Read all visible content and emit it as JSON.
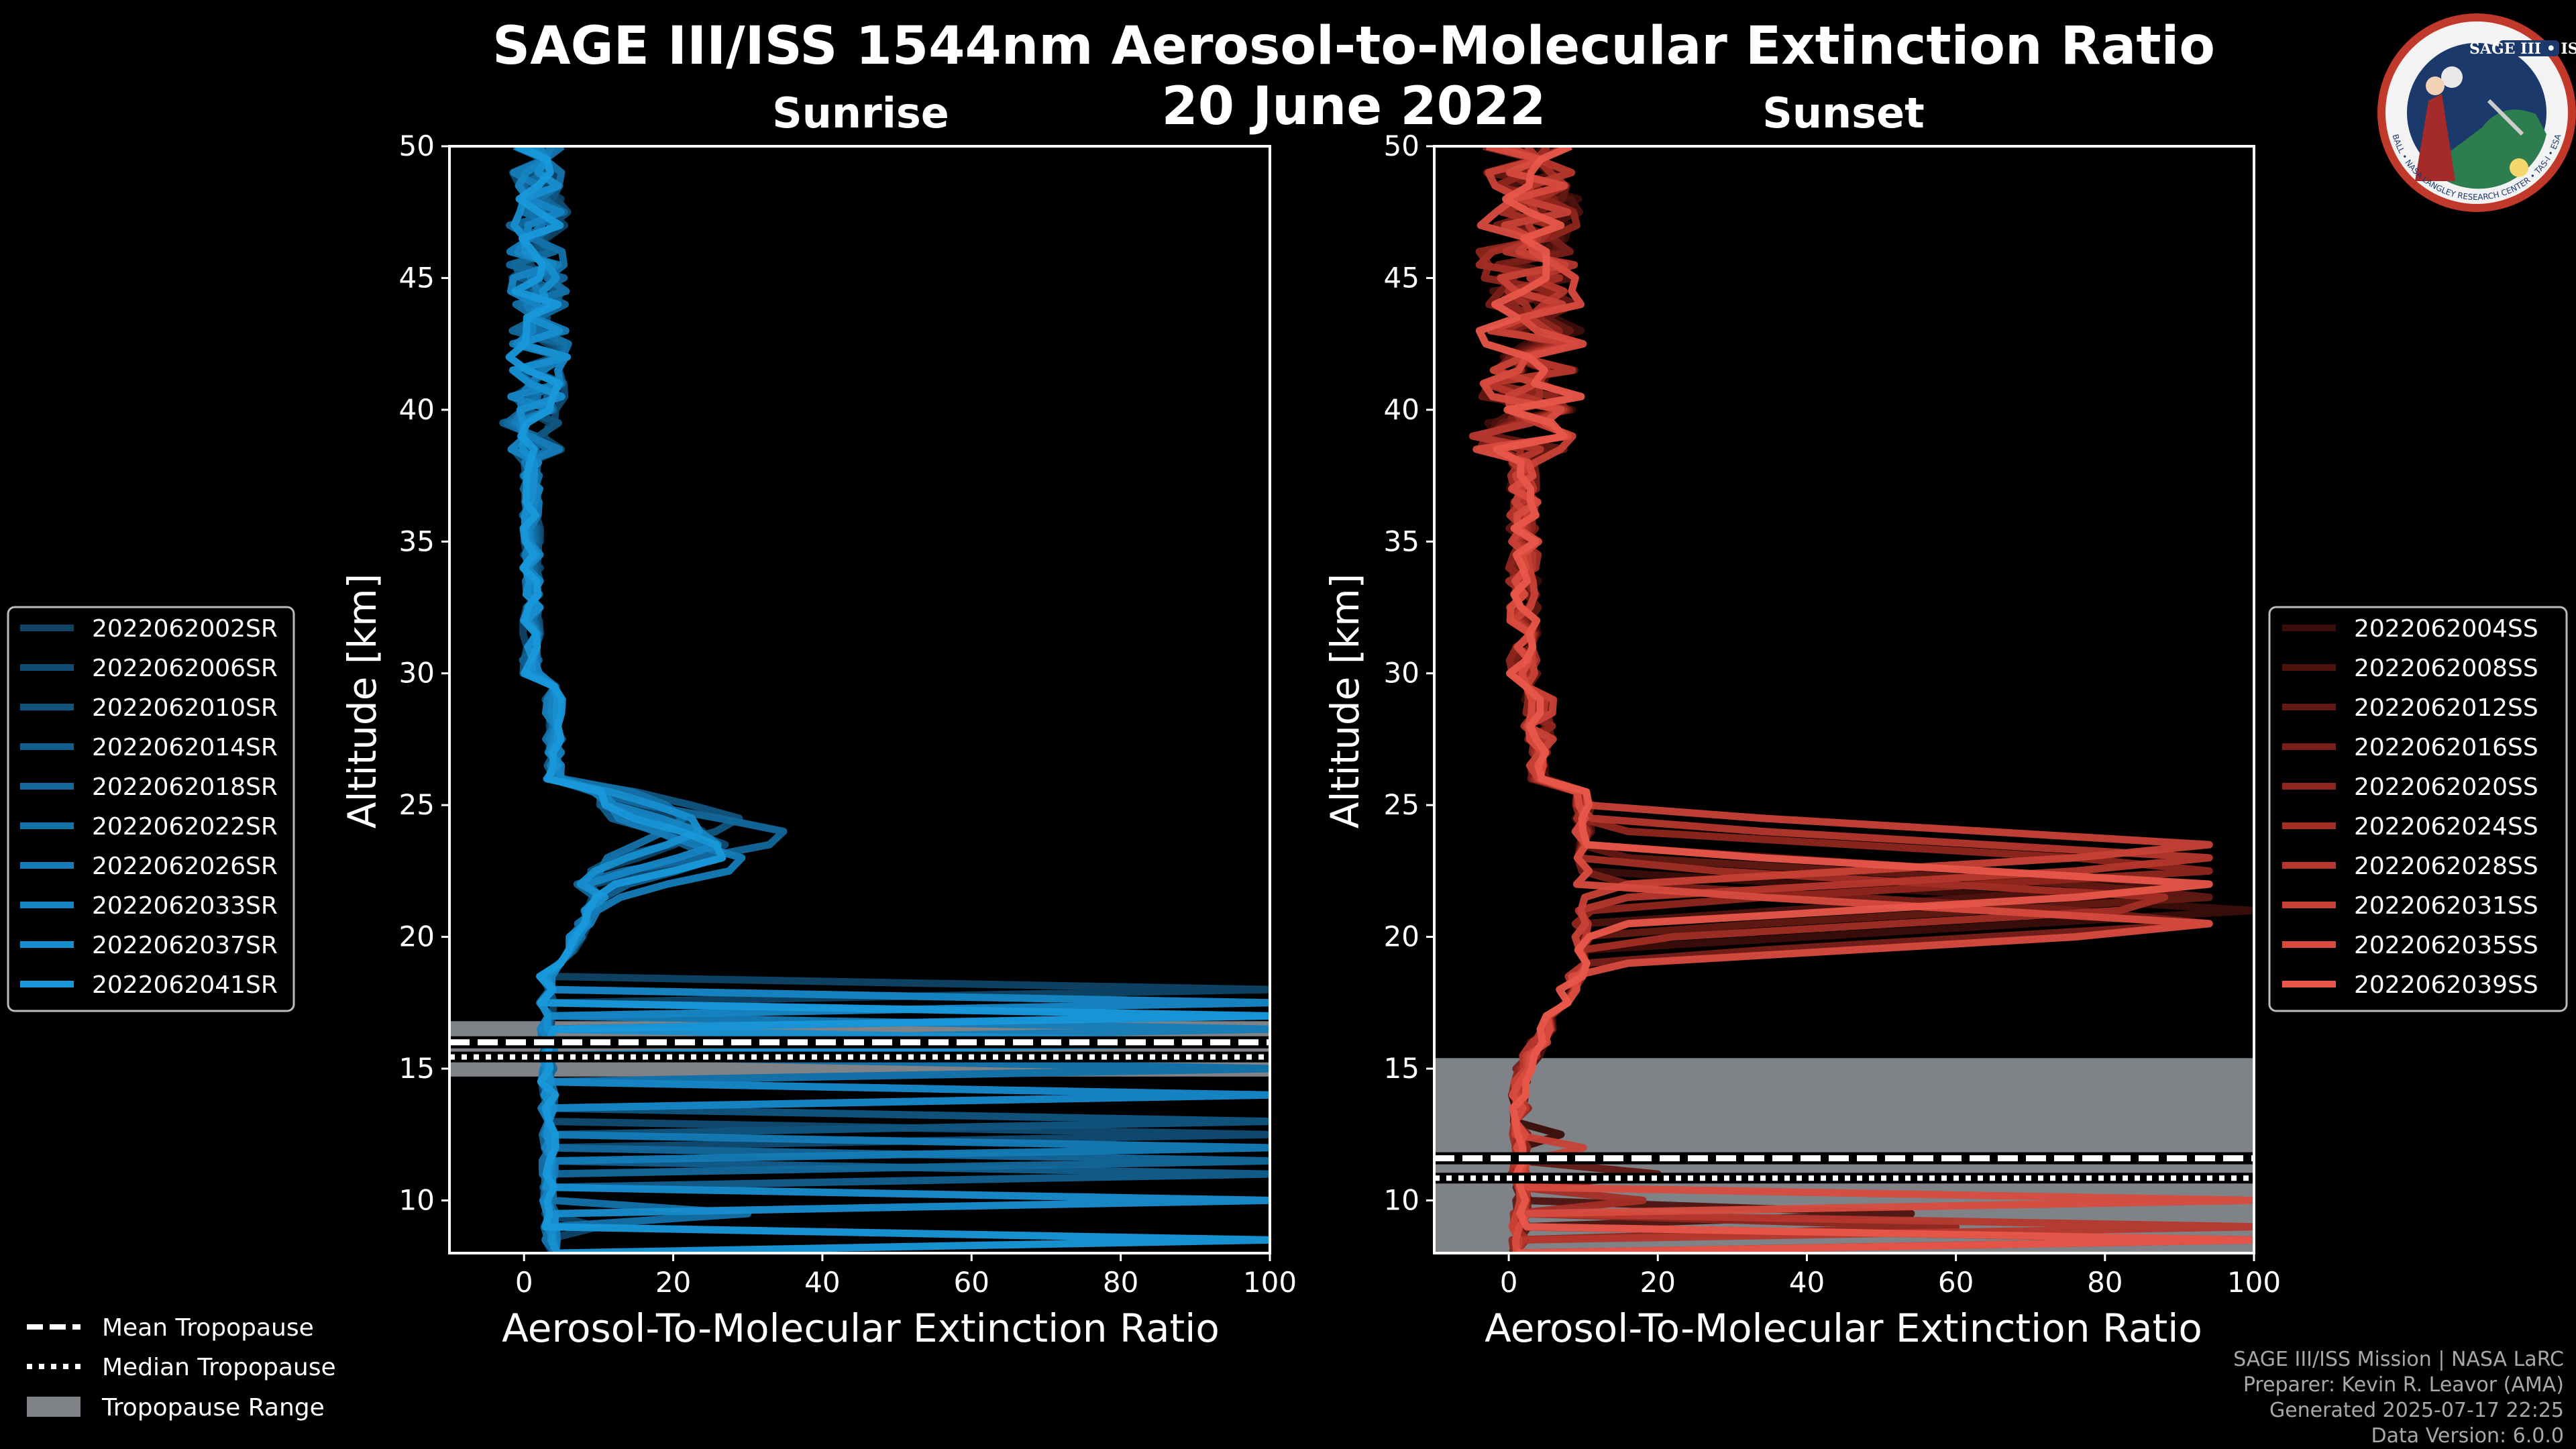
{
  "figure": {
    "title_line1": "SAGE III/ISS 1544nm Aerosol-to-Molecular Extinction Ratio",
    "title_line2": "20 June 2022"
  },
  "logo": {
    "text": "SAGE III • ISS",
    "ring_text": "BALL • NASA LANGLEY RESEARCH CENTER • TAS-I • ESA",
    "colors": {
      "ring": "#c0392b",
      "inner": "#1b3a6b"
    }
  },
  "colors": {
    "sunrise_base": "#1a8fd1",
    "sunset_base": "#e8574a",
    "tropopause_band": "#7f8286",
    "frame": "#ffffff"
  },
  "chart_data": [
    {
      "type": "line",
      "title": "Sunrise",
      "xlabel": "Aerosol-To-Molecular Extinction Ratio",
      "ylabel": "Altitude [km]",
      "xlim": [
        -10,
        100
      ],
      "ylim": [
        8,
        50
      ],
      "xticks": [
        0,
        20,
        40,
        60,
        80,
        100
      ],
      "yticks": [
        10,
        15,
        20,
        25,
        30,
        35,
        40,
        45,
        50
      ],
      "tropopause": {
        "mean": 16.0,
        "median": 15.8,
        "min": 14.7,
        "max": 16.8
      },
      "series": [
        {
          "name": "2022062002SR",
          "color": "#0f4366",
          "peak": [
            24.0,
            24
          ],
          "low_spikes": [
            [
              17.8,
              100
            ],
            [
              9.2,
              10
            ]
          ]
        },
        {
          "name": "2022062006SR",
          "color": "#104c72",
          "peak": [
            23.4,
            28
          ],
          "low_spikes": [
            [
              17.3,
              100
            ],
            [
              12.6,
              100
            ]
          ]
        },
        {
          "name": "2022062010SR",
          "color": "#11557f",
          "peak": [
            24.4,
            30
          ],
          "low_spikes": [
            [
              16.9,
              100
            ],
            [
              13.2,
              100
            ]
          ]
        },
        {
          "name": "2022062014SR",
          "color": "#125e8d",
          "peak": [
            23.0,
            26
          ],
          "low_spikes": [
            [
              15.2,
              100
            ],
            [
              10.8,
              100
            ]
          ]
        },
        {
          "name": "2022062018SR",
          "color": "#13689c",
          "peak": [
            23.8,
            38
          ],
          "low_spikes": [
            [
              14.2,
              100
            ],
            [
              11.6,
              100
            ]
          ]
        },
        {
          "name": "2022062022SR",
          "color": "#1472aa",
          "peak": [
            24.6,
            22
          ],
          "low_spikes": [
            [
              14.8,
              100
            ],
            [
              9.6,
              30
            ]
          ]
        },
        {
          "name": "2022062026SR",
          "color": "#157cb8",
          "peak": [
            22.8,
            32
          ],
          "low_spikes": [
            [
              16.4,
              100
            ],
            [
              12.0,
              100
            ]
          ]
        },
        {
          "name": "2022062033SR",
          "color": "#1685c4",
          "peak": [
            23.6,
            27
          ],
          "low_spikes": [
            [
              17.6,
              100
            ],
            [
              13.8,
              100
            ]
          ]
        },
        {
          "name": "2022062037SR",
          "color": "#178ecf",
          "peak": [
            24.2,
            25
          ],
          "low_spikes": [
            [
              16.2,
              100
            ],
            [
              10.2,
              100
            ]
          ]
        },
        {
          "name": "2022062041SR",
          "color": "#1898da",
          "peak": [
            23.2,
            29
          ],
          "low_spikes": [
            [
              17.0,
              100
            ],
            [
              8.4,
              100
            ]
          ]
        }
      ],
      "legend_extra": [
        "Mean Tropopause",
        "Median Tropopause",
        "Tropopause Range"
      ]
    },
    {
      "type": "line",
      "title": "Sunset",
      "xlabel": "Aerosol-To-Molecular Extinction Ratio",
      "ylabel": "Altitude [km]",
      "xlim": [
        -10,
        100
      ],
      "ylim": [
        8,
        50
      ],
      "xticks": [
        0,
        20,
        40,
        60,
        80,
        100
      ],
      "yticks": [
        10,
        15,
        20,
        25,
        30,
        35,
        40,
        45,
        50
      ],
      "tropopause": {
        "mean": 11.6,
        "median": 11.2,
        "min": 8.0,
        "max": 15.4
      },
      "series": [
        {
          "name": "2022062004SS",
          "color": "#3a0d0a",
          "peak": [
            21.0,
            100
          ],
          "low_spikes": [
            [
              12.6,
              7
            ]
          ]
        },
        {
          "name": "2022062008SS",
          "color": "#4e130f",
          "peak": [
            22.0,
            90
          ],
          "low_spikes": [
            [
              9.6,
              54
            ]
          ]
        },
        {
          "name": "2022062012SS",
          "color": "#621913",
          "peak": [
            21.6,
            100
          ],
          "low_spikes": [
            [
              10.8,
              20
            ]
          ]
        },
        {
          "name": "2022062016SS",
          "color": "#781f18",
          "peak": [
            20.6,
            100
          ],
          "low_spikes": [
            [
              8.6,
              100
            ]
          ]
        },
        {
          "name": "2022062020SS",
          "color": "#8e261e",
          "peak": [
            22.6,
            100
          ],
          "low_spikes": [
            [
              9.2,
              60
            ]
          ]
        },
        {
          "name": "2022062024SS",
          "color": "#a32e25",
          "peak": [
            21.3,
            100
          ],
          "low_spikes": [
            [
              10.2,
              18
            ]
          ]
        },
        {
          "name": "2022062028SS",
          "color": "#b6372d",
          "peak": [
            22.9,
            100
          ],
          "low_spikes": [
            [
              8.8,
              100
            ]
          ]
        },
        {
          "name": "2022062031SS",
          "color": "#c84136",
          "peak": [
            23.4,
            100
          ],
          "low_spikes": [
            [
              11.8,
              10
            ]
          ]
        },
        {
          "name": "2022062035SS",
          "color": "#d84b3f",
          "peak": [
            20.4,
            100
          ],
          "low_spikes": [
            [
              9.9,
              100
            ]
          ]
        },
        {
          "name": "2022062039SS",
          "color": "#e8574a",
          "peak": [
            21.9,
            100
          ],
          "low_spikes": [
            [
              8.7,
              100
            ]
          ]
        }
      ]
    }
  ],
  "legend_tropopause": {
    "mean": "Mean Tropopause",
    "median": "Median Tropopause",
    "range": "Tropopause Range"
  },
  "credits": {
    "line1": "SAGE III/ISS Mission | NASA LaRC",
    "line2": "Preparer: Kevin R. Leavor (AMA)",
    "line3": "Generated 2025-07-17 22:25",
    "line4": "Data Version: 6.0.0"
  }
}
